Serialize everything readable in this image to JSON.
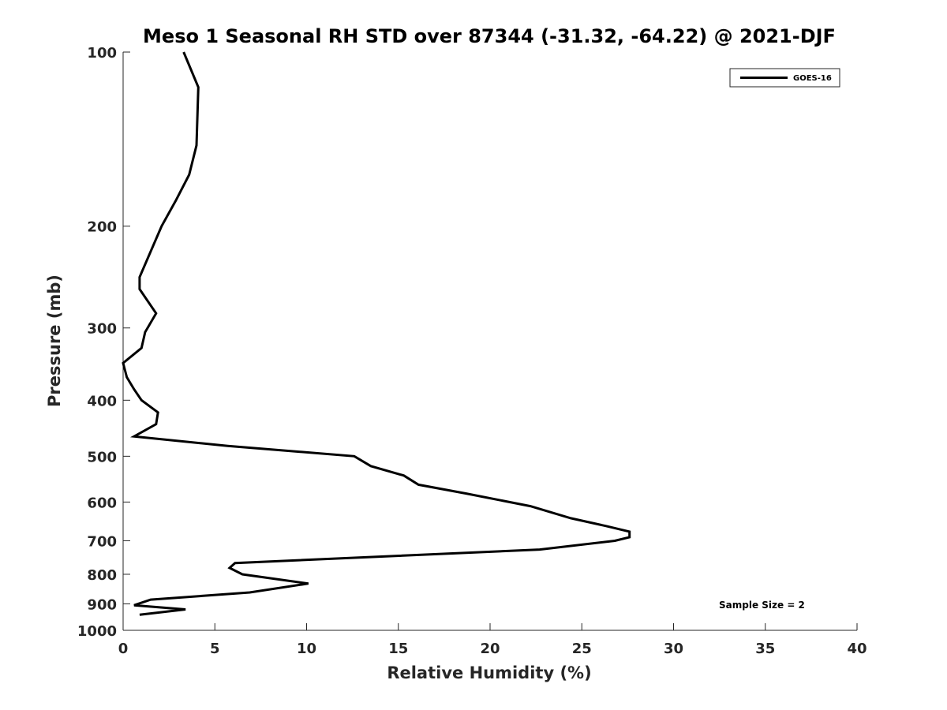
{
  "chart_data": {
    "type": "line",
    "title": "Meso 1 Seasonal RH STD over 87344 (-31.32, -64.22) @ 2021-DJF",
    "xlabel": "Relative Humidity (%)",
    "ylabel": "Pressure (mb)",
    "xlim": [
      0,
      40
    ],
    "ylim": [
      100,
      1000
    ],
    "yscale": "log",
    "y_reversed": true,
    "xticks": [
      0,
      5,
      10,
      15,
      20,
      25,
      30,
      35,
      40
    ],
    "yticks": [
      100,
      200,
      300,
      400,
      500,
      600,
      700,
      800,
      900,
      1000
    ],
    "grid": false,
    "legend_position": "top-right",
    "series": [
      {
        "name": "GOES-16",
        "color": "#000000",
        "points": [
          [
            3.3,
            100
          ],
          [
            4.1,
            115
          ],
          [
            4.0,
            145
          ],
          [
            3.6,
            163
          ],
          [
            2.9,
            180
          ],
          [
            2.1,
            200
          ],
          [
            0.9,
            245
          ],
          [
            0.9,
            257
          ],
          [
            1.8,
            283
          ],
          [
            1.2,
            305
          ],
          [
            1.0,
            325
          ],
          [
            0.0,
            345
          ],
          [
            0.2,
            365
          ],
          [
            0.6,
            383
          ],
          [
            1.0,
            400
          ],
          [
            1.9,
            420
          ],
          [
            1.8,
            440
          ],
          [
            0.6,
            462
          ],
          [
            5.7,
            480
          ],
          [
            12.6,
            500
          ],
          [
            13.5,
            520
          ],
          [
            15.3,
            540
          ],
          [
            16.1,
            560
          ],
          [
            18.7,
            580
          ],
          [
            22.2,
            610
          ],
          [
            24.4,
            640
          ],
          [
            26.3,
            660
          ],
          [
            27.6,
            675
          ],
          [
            27.6,
            690
          ],
          [
            26.8,
            700
          ],
          [
            22.7,
            725
          ],
          [
            6.1,
            765
          ],
          [
            5.8,
            780
          ],
          [
            6.5,
            800
          ],
          [
            10.1,
            830
          ],
          [
            6.9,
            860
          ],
          [
            1.5,
            885
          ],
          [
            0.6,
            905
          ],
          [
            3.4,
            920
          ],
          [
            0.9,
            940
          ]
        ]
      }
    ],
    "annotations": [
      "Sample Size = 2"
    ]
  }
}
